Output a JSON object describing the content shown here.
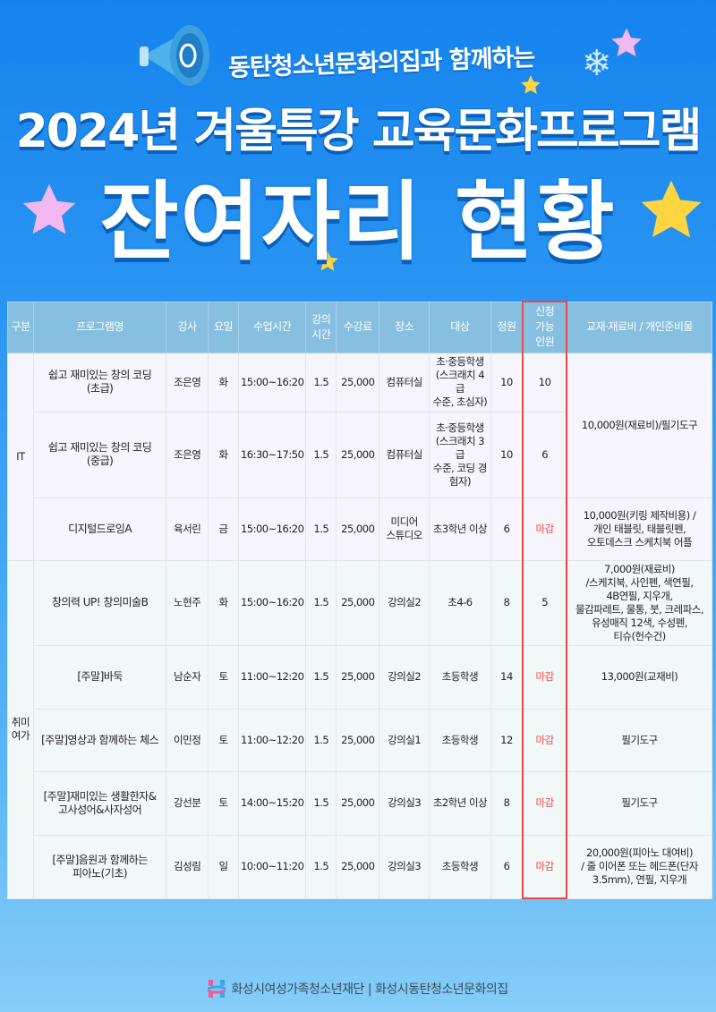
{
  "header": {
    "subtitle": "동탄청소년문화의집과 함께하는",
    "title": "2024년 겨울특강 교육문화프로그램",
    "headline": "잔여자리 현황"
  },
  "colors": {
    "header_bg": "#87bfe0",
    "closed": "#f04a4a",
    "highlight_border": "#e84a4a"
  },
  "table": {
    "columns": [
      "구분",
      "프로그램명",
      "강사",
      "요일",
      "수업시간",
      "강의\n시간",
      "수강료",
      "장소",
      "대상",
      "정원",
      "신청\n가능\n인원",
      "교재·재료비 / 개인준비물"
    ],
    "groups": [
      {
        "category": "IT",
        "rows": [
          {
            "program": "쉽고 재미있는 창의 코딩\n(초급)",
            "teacher": "조은영",
            "day": "화",
            "time": "15:00~16:20",
            "hours": "1.5",
            "fee": "25,000",
            "place": "컴퓨터실",
            "target": "초·중등학생\n(스크래치 4급\n수준, 초심자)",
            "capacity": "10",
            "available": "10",
            "materials": "10,000원(재료비)/필기도구",
            "materials_span": 2
          },
          {
            "program": "쉽고 재미있는 창의 코딩\n(중급)",
            "teacher": "조은영",
            "day": "화",
            "time": "16:30~17:50",
            "hours": "1.5",
            "fee": "25,000",
            "place": "컴퓨터실",
            "target": "초·중등학생\n(스크래치 3급\n수준, 코딩 경\n험자)",
            "capacity": "10",
            "available": "6"
          },
          {
            "program": "디지털드로잉A",
            "teacher": "육서린",
            "day": "금",
            "time": "15:00~16:20",
            "hours": "1.5",
            "fee": "25,000",
            "place": "미디어\n스튜디오",
            "target": "초3학년 이상",
            "capacity": "6",
            "available": "마감",
            "materials": "10,000원(키링 제작비용) /\n개인 태블릿, 태블릿펜,\n오토데스크 스케치북 어플",
            "materials_span": 1
          }
        ]
      },
      {
        "category": "취미\n여가",
        "rows": [
          {
            "program": "창의력 UP! 창의미술B",
            "teacher": "노현주",
            "day": "화",
            "time": "15:00~16:20",
            "hours": "1.5",
            "fee": "25,000",
            "place": "강의실2",
            "target": "초4-6",
            "capacity": "8",
            "available": "5",
            "materials": "7,000원(재료비)\n/스케치북, 사인펜, 색연필,\n4B연필, 지우개,\n물감파레트, 물통, 붓, 크레파스,\n유성매직 12색, 수성펜,\n티슈(헌수건)",
            "materials_span": 1
          },
          {
            "program": "[주말]바둑",
            "teacher": "남순자",
            "day": "토",
            "time": "11:00~12:20",
            "hours": "1.5",
            "fee": "25,000",
            "place": "강의실2",
            "target": "초등학생",
            "capacity": "14",
            "available": "마감",
            "materials": "13,000원(교재비)",
            "materials_span": 1
          },
          {
            "program": "[주말]영상과 함께하는 체스",
            "teacher": "이민정",
            "day": "토",
            "time": "11:00~12:20",
            "hours": "1.5",
            "fee": "25,000",
            "place": "강의실1",
            "target": "초등학생",
            "capacity": "12",
            "available": "마감",
            "materials": "필기도구",
            "materials_span": 1
          },
          {
            "program": "[주말]재미있는 생활한자&\n고사성어&사자성어",
            "teacher": "강선분",
            "day": "토",
            "time": "14:00~15:20",
            "hours": "1.5",
            "fee": "25,000",
            "place": "강의실3",
            "target": "초2학년 이상",
            "capacity": "8",
            "available": "마감",
            "materials": "필기도구",
            "materials_span": 1
          },
          {
            "program": "[주말]음원과 함께하는\n피아노(기초)",
            "teacher": "김성림",
            "day": "일",
            "time": "10:00~11:20",
            "hours": "1.5",
            "fee": "25,000",
            "place": "강의실3",
            "target": "초등학생",
            "capacity": "6",
            "available": "마감",
            "materials": "20,000원(피아노 대여비)\n/ 줄 이어폰 또는 헤드폰(단자\n3.5mm), 연필, 지우개",
            "materials_span": 1
          }
        ]
      }
    ]
  },
  "footer": {
    "logo_text": "H",
    "text": "화성시여성가족청소년재단 | 화성시동탄청소년문화의집"
  }
}
